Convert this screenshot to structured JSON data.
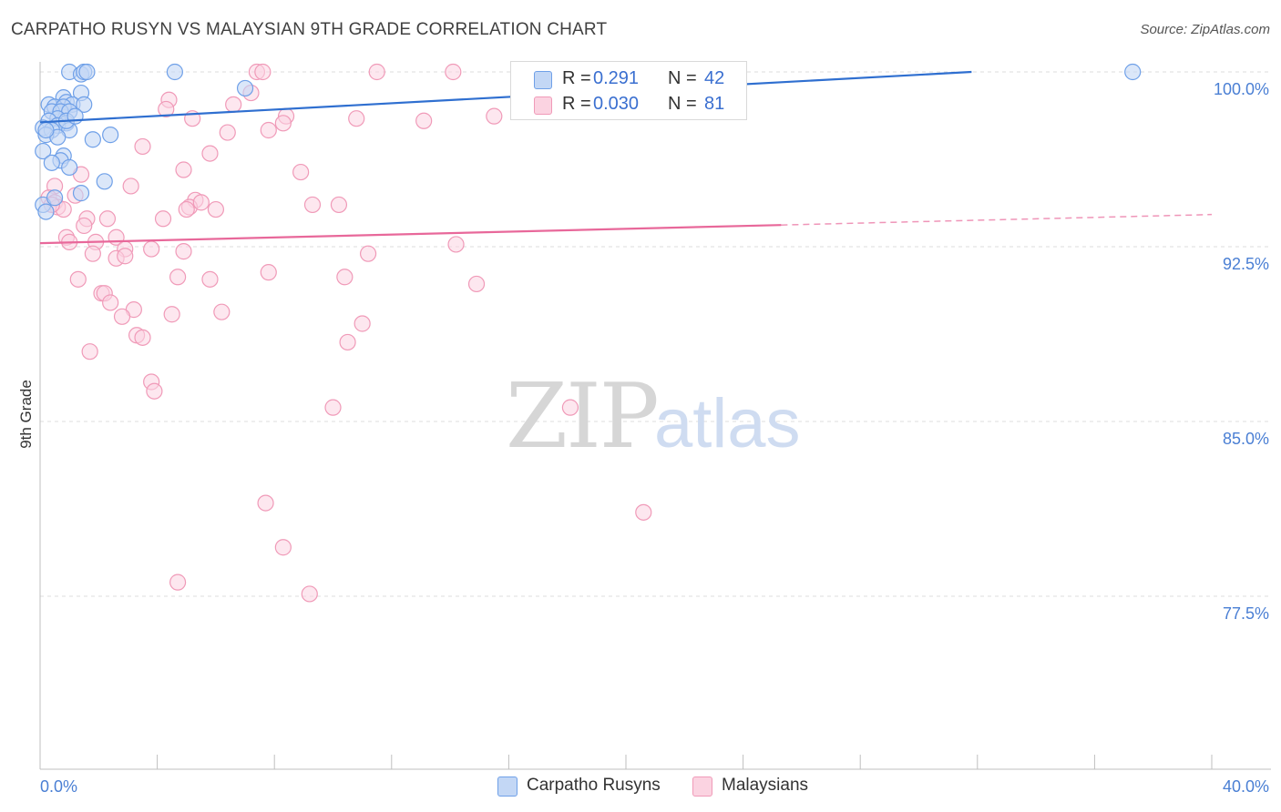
{
  "header": {
    "title": "CARPATHO RUSYN VS MALAYSIAN 9TH GRADE CORRELATION CHART",
    "source": "Source: ZipAtlas.com"
  },
  "watermark": {
    "zip": "ZIP",
    "atlas": "atlas"
  },
  "legend": {
    "rows": [
      {
        "r_label": "R =",
        "r_value": "0.291",
        "n_label": "N =",
        "n_value": "42"
      },
      {
        "r_label": "R =",
        "r_value": "0.030",
        "n_label": "N =",
        "n_value": "81"
      }
    ]
  },
  "bottom_legend": {
    "items": [
      {
        "label": "Carpatho Rusyns"
      },
      {
        "label": "Malaysians"
      }
    ]
  },
  "chart_data": {
    "type": "scatter",
    "title": "CARPATHO RUSYN VS MALAYSIAN 9TH GRADE CORRELATION CHART",
    "xlabel": "",
    "ylabel": "9th Grade",
    "xlim": [
      0,
      40
    ],
    "ylim": [
      70,
      100.8
    ],
    "x_tick_labels": [
      "0.0%",
      "40.0%"
    ],
    "y_ticks": [
      100,
      92.5,
      85,
      77.5
    ],
    "y_tick_labels": [
      "100.0%",
      "92.5%",
      "85.0%",
      "77.5%"
    ],
    "colors": {
      "carpatho": "#6fa0e8",
      "carpatho_fill": "#c3d7f5",
      "carpatho_line": "#2f6fd0",
      "malaysian": "#f09ab8",
      "malaysian_fill": "#fbd3e1",
      "malaysian_line": "#e8689a",
      "tick_text": "#4a7fd4"
    },
    "series": [
      {
        "name": "Carpatho Rusyns",
        "R": 0.291,
        "N": 42,
        "trend": {
          "x": [
            0,
            31.8
          ],
          "y": [
            97.84,
            100.0
          ]
        },
        "points": [
          [
            1.0,
            100.0
          ],
          [
            1.4,
            99.9
          ],
          [
            1.5,
            100.0
          ],
          [
            1.6,
            100.0
          ],
          [
            4.6,
            100.0
          ],
          [
            37.3,
            100.0
          ],
          [
            7.0,
            99.3
          ],
          [
            1.4,
            99.1
          ],
          [
            0.8,
            98.9
          ],
          [
            0.9,
            98.7
          ],
          [
            1.1,
            98.6
          ],
          [
            0.3,
            98.6
          ],
          [
            1.5,
            98.6
          ],
          [
            0.5,
            98.5
          ],
          [
            0.8,
            98.5
          ],
          [
            0.4,
            98.3
          ],
          [
            0.7,
            98.3
          ],
          [
            1.0,
            98.3
          ],
          [
            0.6,
            98.0
          ],
          [
            0.3,
            97.9
          ],
          [
            0.9,
            97.8
          ],
          [
            0.6,
            97.7
          ],
          [
            0.1,
            97.6
          ],
          [
            0.4,
            97.5
          ],
          [
            1.0,
            97.5
          ],
          [
            0.2,
            97.3
          ],
          [
            0.6,
            97.2
          ],
          [
            2.4,
            97.3
          ],
          [
            1.8,
            97.1
          ],
          [
            0.1,
            96.6
          ],
          [
            0.8,
            96.4
          ],
          [
            0.7,
            96.2
          ],
          [
            0.4,
            96.1
          ],
          [
            1.0,
            95.9
          ],
          [
            2.2,
            95.3
          ],
          [
            1.4,
            94.8
          ],
          [
            0.1,
            94.3
          ],
          [
            0.2,
            94.0
          ],
          [
            0.5,
            94.6
          ],
          [
            0.9,
            97.9
          ],
          [
            1.2,
            98.1
          ],
          [
            0.2,
            97.5
          ]
        ]
      },
      {
        "name": "Malaysians",
        "R": 0.03,
        "N": 81,
        "trend": {
          "x": [
            0,
            25.3
          ],
          "y": [
            92.65,
            93.43
          ]
        },
        "trend_dashed": {
          "x": [
            25.3,
            40
          ],
          "y": [
            93.43,
            93.88
          ]
        },
        "points": [
          [
            7.4,
            100.0
          ],
          [
            7.6,
            100.0
          ],
          [
            11.5,
            100.0
          ],
          [
            14.1,
            100.0
          ],
          [
            16.4,
            100.0
          ],
          [
            22.8,
            100.0
          ],
          [
            4.4,
            98.8
          ],
          [
            7.2,
            99.1
          ],
          [
            6.6,
            98.6
          ],
          [
            4.3,
            98.4
          ],
          [
            8.4,
            98.1
          ],
          [
            10.8,
            98.0
          ],
          [
            13.1,
            97.9
          ],
          [
            5.2,
            98.0
          ],
          [
            8.3,
            97.8
          ],
          [
            7.8,
            97.5
          ],
          [
            6.4,
            97.4
          ],
          [
            15.5,
            98.1
          ],
          [
            3.5,
            96.8
          ],
          [
            5.8,
            96.5
          ],
          [
            8.9,
            95.7
          ],
          [
            4.9,
            95.8
          ],
          [
            1.4,
            95.6
          ],
          [
            0.5,
            95.1
          ],
          [
            3.1,
            95.1
          ],
          [
            0.3,
            94.6
          ],
          [
            0.5,
            94.4
          ],
          [
            0.6,
            94.2
          ],
          [
            1.2,
            94.7
          ],
          [
            0.8,
            94.1
          ],
          [
            0.4,
            94.3
          ],
          [
            5.3,
            94.5
          ],
          [
            5.1,
            94.2
          ],
          [
            5.5,
            94.4
          ],
          [
            6.0,
            94.1
          ],
          [
            9.3,
            94.3
          ],
          [
            10.2,
            94.3
          ],
          [
            1.6,
            93.7
          ],
          [
            2.3,
            93.7
          ],
          [
            4.2,
            93.7
          ],
          [
            1.5,
            93.4
          ],
          [
            2.6,
            92.9
          ],
          [
            0.9,
            92.9
          ],
          [
            1.0,
            92.7
          ],
          [
            1.9,
            92.7
          ],
          [
            2.9,
            92.4
          ],
          [
            3.8,
            92.4
          ],
          [
            4.9,
            92.3
          ],
          [
            14.2,
            92.6
          ],
          [
            11.2,
            92.2
          ],
          [
            1.8,
            92.2
          ],
          [
            2.6,
            92.0
          ],
          [
            2.9,
            92.1
          ],
          [
            7.8,
            91.4
          ],
          [
            4.7,
            91.2
          ],
          [
            5.8,
            91.1
          ],
          [
            10.4,
            91.2
          ],
          [
            1.3,
            91.1
          ],
          [
            14.9,
            90.9
          ],
          [
            2.1,
            90.5
          ],
          [
            2.2,
            90.5
          ],
          [
            2.4,
            90.1
          ],
          [
            3.2,
            89.8
          ],
          [
            4.5,
            89.6
          ],
          [
            6.2,
            89.7
          ],
          [
            2.8,
            89.5
          ],
          [
            11.0,
            89.2
          ],
          [
            3.3,
            88.7
          ],
          [
            3.5,
            88.6
          ],
          [
            10.5,
            88.4
          ],
          [
            1.7,
            88.0
          ],
          [
            3.8,
            86.7
          ],
          [
            3.9,
            86.3
          ],
          [
            10.0,
            85.6
          ],
          [
            18.1,
            85.6
          ],
          [
            7.7,
            81.5
          ],
          [
            20.6,
            81.1
          ],
          [
            8.3,
            79.6
          ],
          [
            4.7,
            78.1
          ],
          [
            9.2,
            77.6
          ],
          [
            5.0,
            94.1
          ]
        ]
      }
    ]
  }
}
